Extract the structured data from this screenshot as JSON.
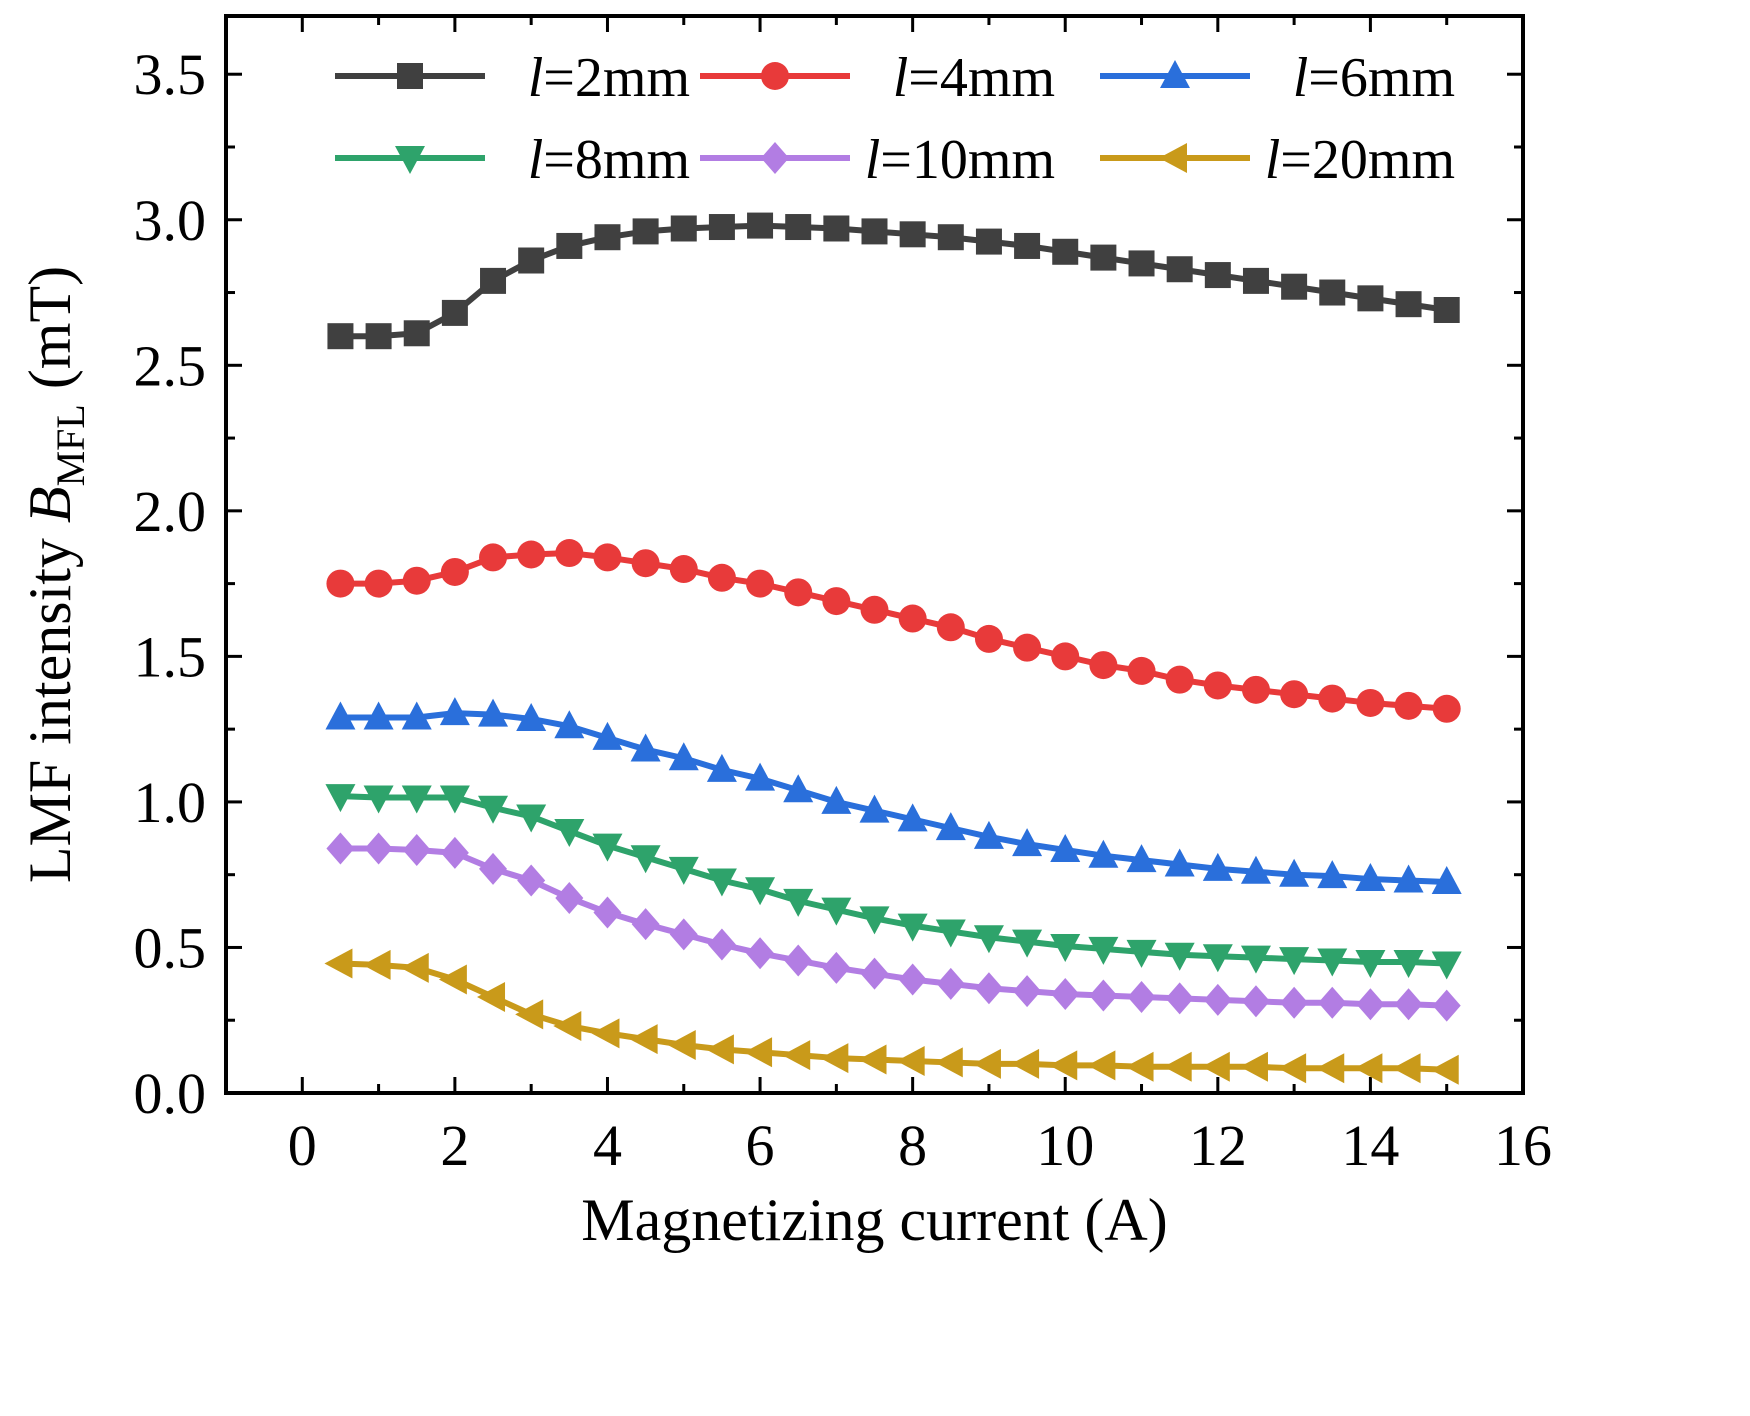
{
  "chart_data": {
    "type": "line",
    "title": "",
    "xlabel": "Magnetizing current (A)",
    "ylabel": {
      "prefix": "LMF intensity ",
      "symbol": "B",
      "subscript": "MFL",
      "unit": " (mT)"
    },
    "xlim": [
      -1,
      16
    ],
    "ylim": [
      0,
      3.7
    ],
    "xticks": [
      0,
      2,
      4,
      6,
      8,
      10,
      12,
      14,
      16
    ],
    "xtick_labels": [
      "0",
      "2",
      "4",
      "6",
      "8",
      "10",
      "12",
      "14",
      "16"
    ],
    "yticks": [
      0,
      0.5,
      1.0,
      1.5,
      2.0,
      2.5,
      3.0,
      3.5
    ],
    "ytick_labels": [
      "0.0",
      "0.5",
      "1.0",
      "1.5",
      "2.0",
      "2.5",
      "3.0",
      "3.5"
    ],
    "x": [
      0.5,
      1,
      1.5,
      2,
      2.5,
      3,
      3.5,
      4,
      4.5,
      5,
      5.5,
      6,
      6.5,
      7,
      7.5,
      8,
      8.5,
      9,
      9.5,
      10,
      10.5,
      11,
      11.5,
      12,
      12.5,
      13,
      13.5,
      14,
      14.5,
      15
    ],
    "series": [
      {
        "name": "l=2mm",
        "italic": "l",
        "rest": "=2mm",
        "color": "#404040",
        "marker": "square",
        "values": [
          2.6,
          2.6,
          2.61,
          2.68,
          2.79,
          2.86,
          2.91,
          2.94,
          2.96,
          2.97,
          2.975,
          2.98,
          2.975,
          2.97,
          2.96,
          2.95,
          2.94,
          2.925,
          2.91,
          2.89,
          2.87,
          2.85,
          2.83,
          2.81,
          2.79,
          2.77,
          2.75,
          2.73,
          2.71,
          2.69
        ]
      },
      {
        "name": "l=4mm",
        "italic": "l",
        "rest": "=4mm",
        "color": "#e83a3a",
        "marker": "circle",
        "values": [
          1.75,
          1.75,
          1.76,
          1.79,
          1.84,
          1.85,
          1.855,
          1.84,
          1.82,
          1.8,
          1.77,
          1.75,
          1.72,
          1.69,
          1.66,
          1.63,
          1.6,
          1.56,
          1.53,
          1.5,
          1.47,
          1.45,
          1.42,
          1.4,
          1.385,
          1.37,
          1.355,
          1.34,
          1.33,
          1.32
        ]
      },
      {
        "name": "l=6mm",
        "italic": "l",
        "rest": "=6mm",
        "color": "#2a6fdb",
        "marker": "triangle-up",
        "values": [
          1.29,
          1.29,
          1.29,
          1.305,
          1.3,
          1.285,
          1.26,
          1.22,
          1.18,
          1.15,
          1.11,
          1.08,
          1.04,
          1.0,
          0.97,
          0.94,
          0.91,
          0.88,
          0.855,
          0.835,
          0.815,
          0.8,
          0.785,
          0.77,
          0.76,
          0.75,
          0.745,
          0.735,
          0.73,
          0.725
        ]
      },
      {
        "name": "l=8mm",
        "italic": "l",
        "rest": "=8mm",
        "color": "#2ea36b",
        "marker": "triangle-down",
        "values": [
          1.02,
          1.015,
          1.015,
          1.015,
          0.98,
          0.95,
          0.9,
          0.85,
          0.81,
          0.77,
          0.73,
          0.7,
          0.66,
          0.63,
          0.6,
          0.575,
          0.555,
          0.535,
          0.52,
          0.505,
          0.495,
          0.485,
          0.475,
          0.47,
          0.465,
          0.46,
          0.455,
          0.45,
          0.45,
          0.445
        ]
      },
      {
        "name": "l=10mm",
        "italic": "l",
        "rest": "=10mm",
        "color": "#b27de3",
        "marker": "diamond",
        "values": [
          0.84,
          0.84,
          0.835,
          0.825,
          0.77,
          0.73,
          0.67,
          0.62,
          0.58,
          0.545,
          0.51,
          0.48,
          0.455,
          0.43,
          0.41,
          0.39,
          0.375,
          0.36,
          0.35,
          0.34,
          0.335,
          0.33,
          0.325,
          0.32,
          0.315,
          0.31,
          0.31,
          0.305,
          0.305,
          0.3
        ]
      },
      {
        "name": "l=20mm",
        "italic": "l",
        "rest": "=20mm",
        "color": "#c99a1a",
        "marker": "triangle-left",
        "values": [
          0.445,
          0.44,
          0.43,
          0.39,
          0.33,
          0.27,
          0.23,
          0.205,
          0.185,
          0.165,
          0.15,
          0.14,
          0.13,
          0.12,
          0.115,
          0.11,
          0.105,
          0.1,
          0.1,
          0.095,
          0.095,
          0.09,
          0.09,
          0.09,
          0.09,
          0.085,
          0.085,
          0.085,
          0.085,
          0.08
        ]
      }
    ],
    "legend": {
      "location": "top",
      "columns": 3
    }
  }
}
